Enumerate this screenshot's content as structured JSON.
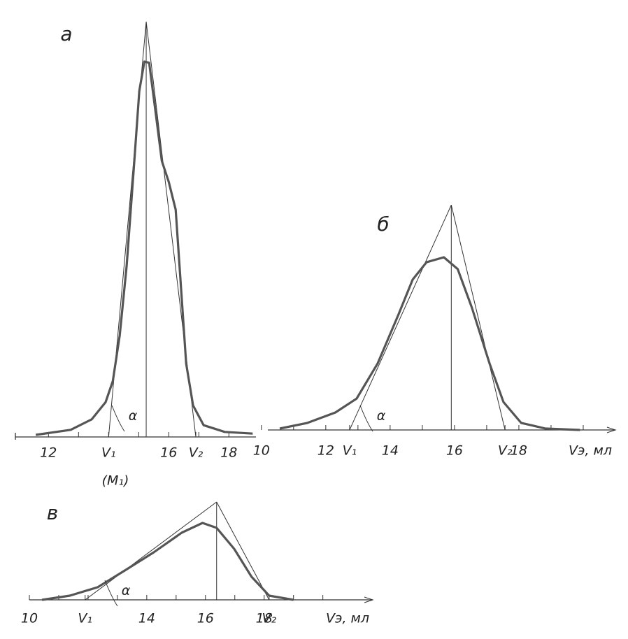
{
  "chart_data": [
    {
      "type": "line",
      "label": "а",
      "color": "#555555",
      "x": [
        11.58,
        12.74,
        13.44,
        13.9,
        14.14,
        14.37,
        14.6,
        14.84,
        15.02,
        15.19,
        15.35,
        15.53,
        15.77,
        16.0,
        16.23,
        16.42,
        16.58,
        16.81,
        17.16,
        17.86,
        18.79
      ],
      "values": [
        0.5,
        1.7,
        4.2,
        8.3,
        13.3,
        24.2,
        40.8,
        64.2,
        82.5,
        89.5,
        89.2,
        79.2,
        65.8,
        60.8,
        54.2,
        34.2,
        17.5,
        7.5,
        2.8,
        1.2,
        0.8
      ],
      "xlim": [
        10.9,
        18.9
      ],
      "ylim": [
        0,
        100
      ],
      "xticks": [
        12,
        16,
        18,
        {
          "value": 14.0,
          "label": "V₁"
        },
        {
          "value": 16.9,
          "label": "V₂"
        }
      ],
      "minor_ticks": [
        13,
        15,
        17
      ],
      "apex": {
        "x": 15.25,
        "y": 99
      },
      "annotations": [
        "α",
        "(M₁)"
      ]
    },
    {
      "type": "line",
      "label": "б",
      "color": "#555555",
      "x": [
        10.57,
        11.43,
        12.3,
        12.96,
        13.61,
        14.26,
        14.7,
        15.13,
        15.67,
        16.1,
        16.54,
        17.09,
        17.52,
        18.07,
        18.83,
        19.9
      ],
      "values": [
        0.6,
        3.1,
        7.7,
        13.8,
        29.2,
        50.8,
        66.2,
        73.8,
        76,
        70.8,
        53.8,
        29.2,
        12.3,
        3.1,
        0.6,
        0
      ],
      "xlim": [
        10.2,
        21
      ],
      "ylim": [
        0,
        100
      ],
      "xticks": [
        10,
        12,
        14,
        16,
        18,
        {
          "value": 12.74,
          "label": "V₁"
        },
        {
          "value": 17.57,
          "label": "V₂"
        }
      ],
      "minor_ticks": [
        11,
        13,
        15,
        17,
        19,
        20
      ],
      "apex": {
        "x": 15.9,
        "y": 99
      },
      "x_label": "Vэ, мл",
      "annotations": [
        "α"
      ]
    },
    {
      "type": "line",
      "label": "в",
      "color": "#555555",
      "x": [
        10.43,
        11.38,
        12.33,
        13.29,
        14.24,
        15.19,
        15.9,
        16.38,
        16.98,
        17.57,
        18.17,
        19
      ],
      "values": [
        0,
        4.3,
        12.9,
        30.7,
        48.6,
        68.6,
        78.6,
        73.6,
        52.1,
        23.6,
        4.3,
        0
      ],
      "xlim": [
        10,
        21.7
      ],
      "ylim": [
        0,
        100
      ],
      "xticks": [
        10,
        14,
        16,
        18,
        {
          "value": 11.9,
          "label": "V₁"
        },
        {
          "value": 18.17,
          "label": "V₂"
        }
      ],
      "minor_ticks": [
        11,
        12,
        13,
        15,
        17,
        19,
        20
      ],
      "apex": {
        "x": 16.38,
        "y": 100
      },
      "x_label": "Vэ, мл",
      "annotations": [
        "α"
      ]
    }
  ]
}
